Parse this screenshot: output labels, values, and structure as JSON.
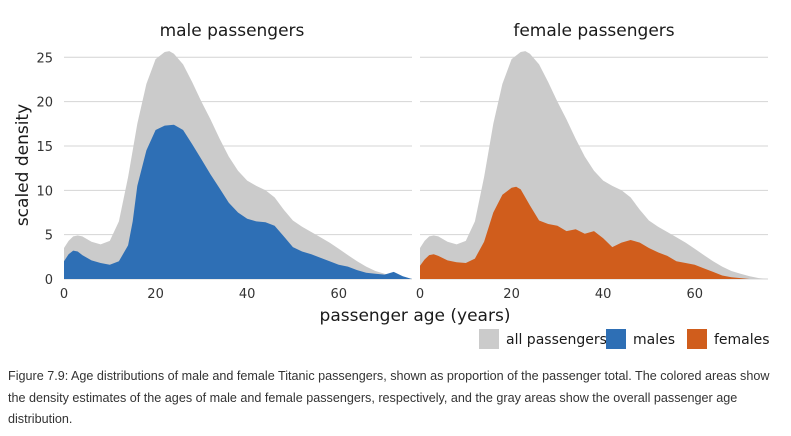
{
  "chart_data": {
    "type": "area",
    "ylabel": "scaled density",
    "xlabel": "passenger age (years)",
    "xlim": [
      0,
      76
    ],
    "ylim": [
      0,
      26.5
    ],
    "x_ticks": [
      0,
      20,
      40,
      60
    ],
    "y_ticks": [
      0,
      5,
      10,
      15,
      20,
      25
    ],
    "grid": "horizontal",
    "legend_position": "bottom-right",
    "colors": {
      "all": "#cbcbcb",
      "males": "#2e6fb5",
      "females": "#d05d1c"
    },
    "legend": [
      {
        "key": "all",
        "label": "all passengers"
      },
      {
        "key": "males",
        "label": "males"
      },
      {
        "key": "females",
        "label": "females"
      }
    ],
    "panels": [
      {
        "title": "male passengers",
        "subgroup_key": "males"
      },
      {
        "title": "female passengers",
        "subgroup_key": "females"
      }
    ],
    "all_passengers": {
      "x": [
        0,
        1,
        2,
        3,
        4,
        6,
        8,
        10,
        12,
        14,
        16,
        18,
        20,
        22,
        23,
        24,
        26,
        28,
        30,
        32,
        34,
        36,
        38,
        40,
        42,
        44,
        46,
        48,
        50,
        52,
        54,
        56,
        58,
        60,
        62,
        64,
        66,
        68,
        70,
        72,
        74,
        76
      ],
      "y": [
        3.5,
        4.3,
        4.8,
        4.9,
        4.8,
        4.2,
        3.9,
        4.3,
        6.5,
        11.5,
        17.5,
        22.0,
        24.8,
        25.6,
        25.7,
        25.4,
        24.2,
        22.2,
        20.0,
        18.0,
        15.8,
        13.8,
        12.2,
        11.1,
        10.5,
        10.0,
        9.2,
        7.8,
        6.6,
        5.9,
        5.3,
        4.7,
        4.1,
        3.4,
        2.7,
        2.0,
        1.4,
        0.9,
        0.6,
        0.3,
        0.1,
        0.0
      ]
    },
    "series": [
      {
        "name": "males",
        "x": [
          0,
          1,
          2,
          3,
          4,
          6,
          8,
          10,
          12,
          14,
          15,
          16,
          18,
          20,
          22,
          24,
          26,
          28,
          30,
          32,
          34,
          36,
          38,
          40,
          42,
          44,
          46,
          48,
          50,
          52,
          54,
          56,
          58,
          60,
          62,
          64,
          66,
          68,
          70,
          72,
          74,
          76
        ],
        "y": [
          2.0,
          2.8,
          3.2,
          3.1,
          2.7,
          2.1,
          1.8,
          1.6,
          2.0,
          3.8,
          6.5,
          10.5,
          14.5,
          16.8,
          17.3,
          17.4,
          16.8,
          15.2,
          13.5,
          11.8,
          10.2,
          8.6,
          7.5,
          6.8,
          6.5,
          6.4,
          6.0,
          4.8,
          3.6,
          3.1,
          2.8,
          2.4,
          2.0,
          1.6,
          1.4,
          1.0,
          0.7,
          0.6,
          0.5,
          0.8,
          0.3,
          0.0
        ]
      },
      {
        "name": "females",
        "x": [
          0,
          1,
          2,
          3,
          4,
          6,
          8,
          10,
          12,
          14,
          16,
          18,
          20,
          21,
          22,
          24,
          26,
          28,
          30,
          32,
          34,
          36,
          38,
          40,
          42,
          44,
          46,
          48,
          50,
          52,
          54,
          56,
          58,
          60,
          62,
          64,
          66,
          68,
          70,
          72,
          74,
          76
        ],
        "y": [
          1.5,
          2.2,
          2.7,
          2.8,
          2.6,
          2.1,
          1.9,
          1.8,
          2.3,
          4.2,
          7.5,
          9.5,
          10.3,
          10.4,
          10.1,
          8.3,
          6.6,
          6.2,
          6.0,
          5.4,
          5.6,
          5.1,
          5.4,
          4.6,
          3.6,
          4.1,
          4.4,
          4.1,
          3.5,
          3.0,
          2.6,
          2.0,
          1.8,
          1.6,
          1.2,
          0.8,
          0.4,
          0.2,
          0.1,
          0.0,
          0.0,
          0.0
        ]
      }
    ]
  },
  "caption": {
    "text": "Figure 7.9: Age distributions of male and female Titanic passengers, shown as proportion of the passenger total. The colored areas show the density estimates of the ages of male and female passengers, respectively, and the gray areas show the overall passenger age distribution."
  }
}
